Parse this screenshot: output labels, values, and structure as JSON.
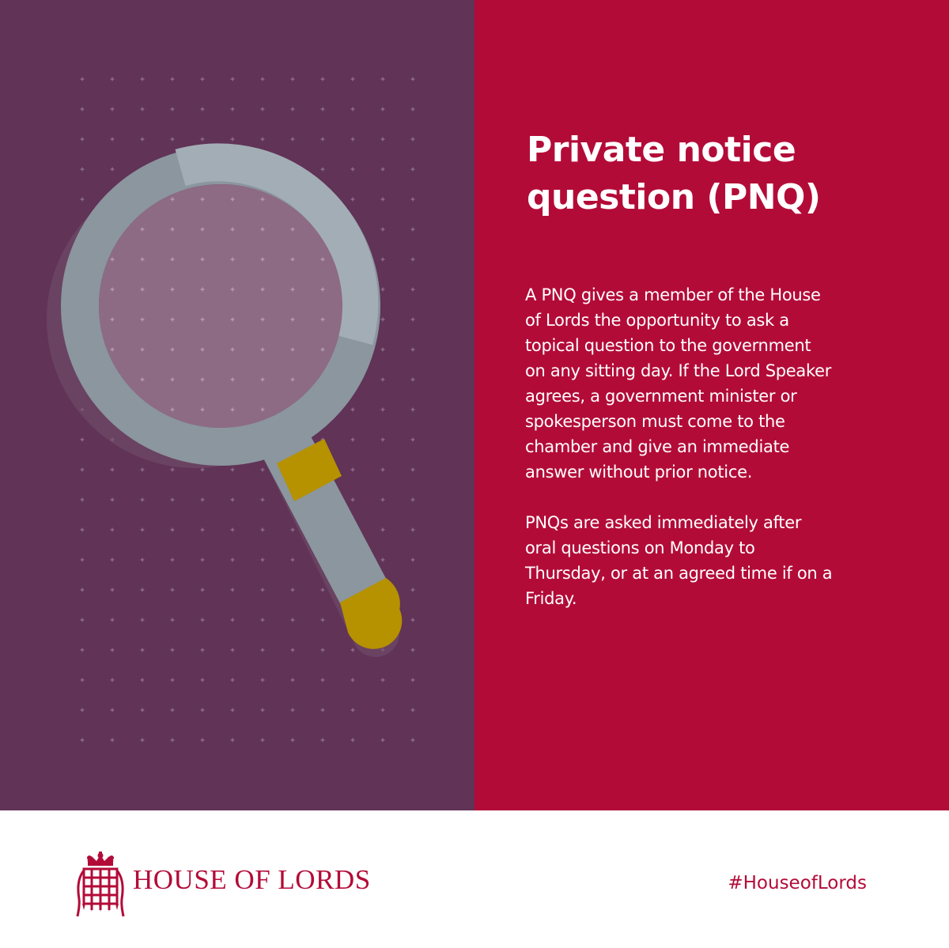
{
  "colors": {
    "left_panel": "#603357",
    "right_panel": "#b30b38",
    "magnifier_frame": "#8b969f",
    "magnifier_frame_light": "#a3adb5",
    "magnifier_lens": "#8d6b85",
    "magnifier_band": "#b69100",
    "footer_text": "#b30b38"
  },
  "illustration": {
    "icon": "magnifying-glass-icon",
    "pattern": "portcullis-dot-grid"
  },
  "content": {
    "title": "Private notice\nquestion (PNQ)",
    "paragraphs": [
      "A PNQ gives a member of the House\nof Lords the opportunity to ask a\ntopical question to the government\non any sitting day. If the Lord Speaker\nagrees, a government minister or\nspokesperson must come to the\nchamber and give an immediate\nanswer without prior notice.",
      "PNQs are asked immediately after\noral questions on Monday to\nThursday, or at an agreed time if on a\nFriday."
    ]
  },
  "footer": {
    "logo_icon": "portcullis-crown-icon",
    "org_name": "HOUSE OF LORDS",
    "hashtag": "#HouseofLords"
  }
}
